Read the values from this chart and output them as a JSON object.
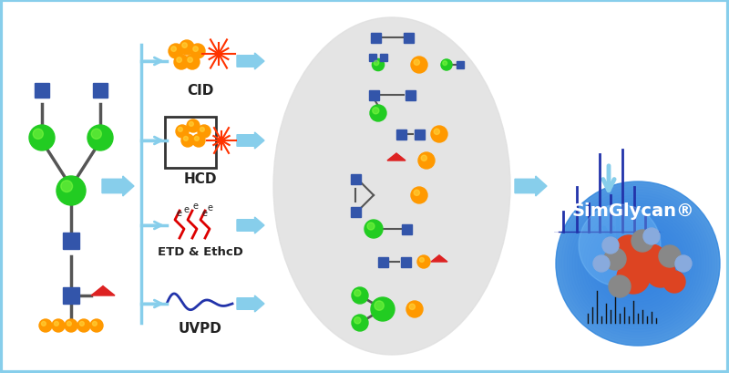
{
  "bg_color": "#ffffff",
  "border_color": "#87CEEB",
  "blue_sq": "#3355aa",
  "green_circ": "#22cc22",
  "orange_circ": "#ff9900",
  "red_tri": "#dd2222",
  "arrow_color": "#87CEEB",
  "spectrum_color": "#2233aa",
  "labels": [
    "CID",
    "HCD",
    "ETD & EthcD",
    "UVPD"
  ],
  "simglycan_text": "SimGlycan®"
}
